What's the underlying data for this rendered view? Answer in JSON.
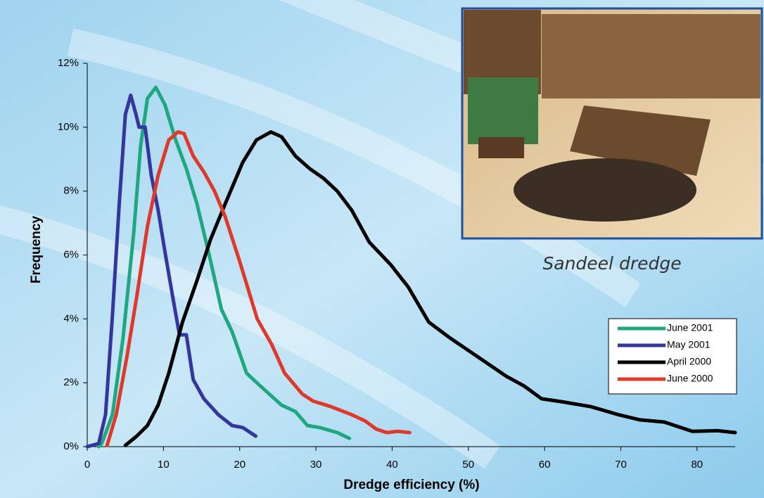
{
  "chart_data": {
    "type": "line",
    "x_label": "Dredge efficiency (%)",
    "y_label": "Frequency",
    "caption": "Sandeel dredge",
    "xlim": [
      0,
      85
    ],
    "xticks": [
      0,
      10,
      20,
      30,
      40,
      50,
      60,
      70,
      80
    ],
    "ylim": [
      0,
      12
    ],
    "yticks": [
      {
        "value": 0,
        "label": "0%"
      },
      {
        "value": 2,
        "label": "2%"
      },
      {
        "value": 4,
        "label": "4%"
      },
      {
        "value": 6,
        "label": "6%"
      },
      {
        "value": 8,
        "label": "8%"
      },
      {
        "value": 10,
        "label": "10%"
      },
      {
        "value": 12,
        "label": "12%"
      }
    ],
    "series": [
      {
        "name": "June 2001",
        "color": "#1fa880",
        "x": [
          1.5,
          1.9,
          3.3,
          4.7,
          6.1,
          7.0,
          7.9,
          9.0,
          10.2,
          11.6,
          13.0,
          14.4,
          16.2,
          17.6,
          19.0,
          20.9,
          22.7,
          25.5,
          27.3,
          28.9,
          30.5,
          32.8,
          34.4
        ],
        "values": [
          0,
          0.1,
          1.0,
          3.4,
          6.7,
          9.4,
          10.9,
          11.25,
          10.7,
          9.6,
          8.7,
          7.6,
          5.8,
          4.3,
          3.6,
          2.3,
          1.9,
          1.3,
          1.1,
          0.66,
          0.6,
          0.44,
          0.26
        ]
      },
      {
        "name": "May 2001",
        "color": "#3535a0",
        "x": [
          0,
          1.5,
          2.4,
          3.3,
          4.2,
          5.0,
          5.7,
          6.4,
          6.8,
          7.6,
          8.4,
          9.3,
          10.2,
          11.2,
          12.1,
          13.0,
          13.9,
          15.3,
          17.2,
          19.0,
          20.4,
          22.1
        ],
        "values": [
          0,
          0.1,
          1.0,
          4.1,
          7.6,
          10.4,
          11.0,
          10.4,
          10.0,
          10.0,
          8.5,
          7.4,
          6.1,
          4.7,
          3.5,
          3.5,
          2.1,
          1.5,
          1.0,
          0.66,
          0.6,
          0.33
        ]
      },
      {
        "name": "April 2000",
        "color": "#000000",
        "x": [
          5.0,
          6.5,
          7.9,
          9.3,
          10.7,
          12.5,
          14.4,
          16.2,
          18.1,
          20.4,
          22.2,
          24.1,
          25.5,
          27.3,
          29.2,
          31.0,
          32.8,
          34.7,
          37.0,
          39.8,
          42.1,
          44.8,
          47.6,
          51.3,
          55.0,
          57.3,
          59.6,
          62.4,
          66.1,
          69.7,
          72.5,
          75.7,
          79.4,
          82.7,
          85.0
        ],
        "values": [
          0.04,
          0.33,
          0.66,
          1.3,
          2.3,
          3.9,
          5.2,
          6.5,
          7.6,
          8.9,
          9.6,
          9.85,
          9.7,
          9.1,
          8.7,
          8.4,
          8.0,
          7.4,
          6.4,
          5.7,
          5.0,
          3.9,
          3.4,
          2.8,
          2.2,
          1.9,
          1.5,
          1.4,
          1.25,
          1.0,
          0.84,
          0.77,
          0.48,
          0.5,
          0.44
        ]
      },
      {
        "name": "June 2000",
        "color": "#e0392b",
        "x": [
          2.6,
          3.8,
          5.2,
          6.5,
          7.9,
          9.3,
          10.7,
          11.9,
          12.7,
          13.9,
          15.3,
          16.7,
          18.1,
          20.0,
          22.3,
          24.2,
          25.9,
          28.2,
          29.6,
          31.9,
          34.7,
          36.5,
          37.9,
          39.3,
          40.7,
          42.3
        ],
        "values": [
          0.04,
          1.0,
          2.8,
          4.7,
          6.9,
          8.5,
          9.6,
          9.85,
          9.8,
          9.1,
          8.6,
          8.0,
          7.2,
          5.8,
          4.0,
          3.2,
          2.3,
          1.65,
          1.43,
          1.26,
          1.0,
          0.8,
          0.55,
          0.44,
          0.48,
          0.44
        ]
      }
    ]
  }
}
